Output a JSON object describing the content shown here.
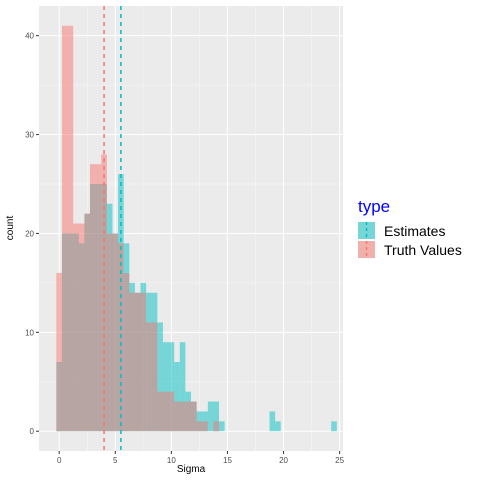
{
  "chart_data": {
    "type": "bar",
    "subtype": "overlaid-histogram",
    "xlabel": "Sigma",
    "ylabel": "count",
    "xlim": [
      -1.8,
      25.3
    ],
    "ylim": [
      -2,
      43
    ],
    "x_ticks": [
      0,
      5,
      10,
      15,
      20,
      25
    ],
    "y_ticks": [
      0,
      10,
      20,
      30,
      40
    ],
    "bin_width": 0.5,
    "grid": true,
    "legend": {
      "title": "type",
      "position": "right",
      "title_color": "#0000ff",
      "entries": [
        "Estimates",
        "Truth Values"
      ]
    },
    "series": [
      {
        "name": "Estimates",
        "color": "#00bfc4",
        "vline": 5.5,
        "bins": [
          {
            "x0": -0.25,
            "count": 7
          },
          {
            "x0": 0.25,
            "count": 20
          },
          {
            "x0": 0.75,
            "count": 20
          },
          {
            "x0": 1.25,
            "count": 20
          },
          {
            "x0": 1.75,
            "count": 19
          },
          {
            "x0": 2.25,
            "count": 22
          },
          {
            "x0": 2.75,
            "count": 25
          },
          {
            "x0": 3.25,
            "count": 25
          },
          {
            "x0": 3.75,
            "count": 25
          },
          {
            "x0": 4.25,
            "count": 23
          },
          {
            "x0": 4.75,
            "count": 20
          },
          {
            "x0": 5.25,
            "count": 26
          },
          {
            "x0": 5.75,
            "count": 19
          },
          {
            "x0": 6.25,
            "count": 15
          },
          {
            "x0": 6.75,
            "count": 14
          },
          {
            "x0": 7.25,
            "count": 15
          },
          {
            "x0": 7.75,
            "count": 14
          },
          {
            "x0": 8.25,
            "count": 14
          },
          {
            "x0": 8.75,
            "count": 11
          },
          {
            "x0": 9.25,
            "count": 9
          },
          {
            "x0": 9.75,
            "count": 9
          },
          {
            "x0": 10.25,
            "count": 7
          },
          {
            "x0": 10.75,
            "count": 9
          },
          {
            "x0": 11.25,
            "count": 4
          },
          {
            "x0": 11.75,
            "count": 3
          },
          {
            "x0": 12.25,
            "count": 2
          },
          {
            "x0": 12.75,
            "count": 2
          },
          {
            "x0": 13.25,
            "count": 3
          },
          {
            "x0": 13.75,
            "count": 3
          },
          {
            "x0": 14.25,
            "count": 1
          },
          {
            "x0": 18.75,
            "count": 2
          },
          {
            "x0": 19.25,
            "count": 1
          },
          {
            "x0": 24.25,
            "count": 1
          }
        ]
      },
      {
        "name": "Truth Values",
        "color": "#f8766d",
        "vline": 4.0,
        "bins": [
          {
            "x0": -0.25,
            "count": 16
          },
          {
            "x0": 0.25,
            "count": 41
          },
          {
            "x0": 0.75,
            "count": 41
          },
          {
            "x0": 1.25,
            "count": 21
          },
          {
            "x0": 1.75,
            "count": 21
          },
          {
            "x0": 2.25,
            "count": 22
          },
          {
            "x0": 2.75,
            "count": 27
          },
          {
            "x0": 3.25,
            "count": 27
          },
          {
            "x0": 3.75,
            "count": 28
          },
          {
            "x0": 4.25,
            "count": 20
          },
          {
            "x0": 4.75,
            "count": 20
          },
          {
            "x0": 5.25,
            "count": 19
          },
          {
            "x0": 5.75,
            "count": 16
          },
          {
            "x0": 6.25,
            "count": 14
          },
          {
            "x0": 6.75,
            "count": 14
          },
          {
            "x0": 7.25,
            "count": 14
          },
          {
            "x0": 7.75,
            "count": 11
          },
          {
            "x0": 8.25,
            "count": 11
          },
          {
            "x0": 8.75,
            "count": 4
          },
          {
            "x0": 9.25,
            "count": 4
          },
          {
            "x0": 9.75,
            "count": 4
          },
          {
            "x0": 10.25,
            "count": 3
          },
          {
            "x0": 10.75,
            "count": 3
          },
          {
            "x0": 11.25,
            "count": 3
          },
          {
            "x0": 11.75,
            "count": 3
          },
          {
            "x0": 12.25,
            "count": 1
          },
          {
            "x0": 12.75,
            "count": 1
          },
          {
            "x0": 13.75,
            "count": 1
          }
        ]
      }
    ]
  }
}
